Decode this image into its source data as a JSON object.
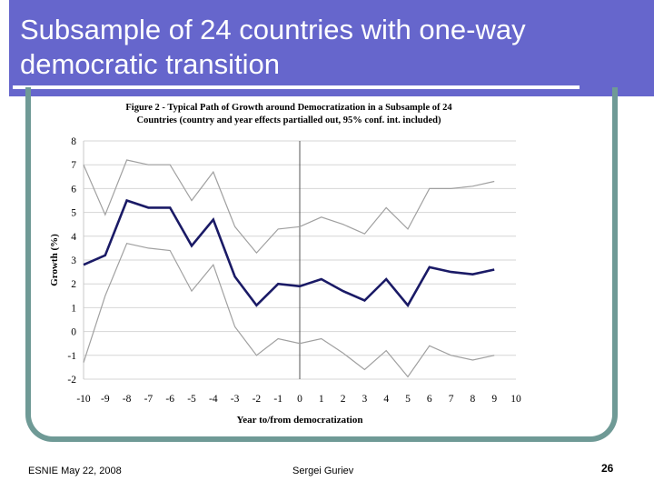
{
  "slide": {
    "title_line1": "Subsample of 24 countries with one-way",
    "title_line2": "democratic transition",
    "footer_left": "ESNIE May 22, 2008",
    "footer_center": "Sergei Guriev",
    "page_number": "26"
  },
  "colors": {
    "title_bar": "#6666cc",
    "frame": "#6f9a96",
    "main_line": "#1a1a66",
    "ci_line": "#a0a0a0",
    "zero_line": "#555555"
  },
  "chart_data": {
    "type": "line",
    "title_line1": "Figure 2 - Typical Path of Growth around Democratization in a Subsample of 24",
    "title_line2": "Countries (country and year effects partialled out, 95% conf. int. included)",
    "xlabel": "Year to/from democratization",
    "ylabel": "Growth (%)",
    "xlim": [
      -10,
      10
    ],
    "ylim": [
      -2,
      8
    ],
    "x_ticks": [
      -10,
      -9,
      -8,
      -7,
      -6,
      -5,
      -4,
      -3,
      -2,
      -1,
      0,
      1,
      2,
      3,
      4,
      5,
      6,
      7,
      8,
      9,
      10
    ],
    "y_ticks": [
      -2,
      -1,
      0,
      1,
      2,
      3,
      4,
      5,
      6,
      7,
      8
    ],
    "grid": "horizontal",
    "vertical_line_at": 0,
    "x": [
      -10,
      -9,
      -8,
      -7,
      -6,
      -5,
      -4,
      -3,
      -2,
      -1,
      0,
      1,
      2,
      3,
      4,
      5,
      6,
      7,
      8,
      9
    ],
    "series": [
      {
        "role": "upper 95% confidence bound",
        "style": "thin grey line",
        "values": [
          7.0,
          4.9,
          7.2,
          7.0,
          7.0,
          5.5,
          6.7,
          4.4,
          3.3,
          4.3,
          4.4,
          4.8,
          4.5,
          4.1,
          5.2,
          4.3,
          6.0,
          6.0,
          6.1,
          6.3
        ]
      },
      {
        "role": "estimate",
        "style": "thick dark navy line",
        "values": [
          2.8,
          3.2,
          5.5,
          5.2,
          5.2,
          3.6,
          4.7,
          2.3,
          1.1,
          2.0,
          1.9,
          2.2,
          1.7,
          1.3,
          2.2,
          1.1,
          2.7,
          2.5,
          2.4,
          2.6
        ]
      },
      {
        "role": "lower 95% confidence bound",
        "style": "thin grey line",
        "values": [
          -1.3,
          1.5,
          3.7,
          3.5,
          3.4,
          1.7,
          2.8,
          0.2,
          -1.0,
          -0.3,
          -0.5,
          -0.3,
          -0.9,
          -1.6,
          -0.8,
          -1.9,
          -0.6,
          -1.0,
          -1.2,
          -1.0
        ]
      }
    ]
  }
}
